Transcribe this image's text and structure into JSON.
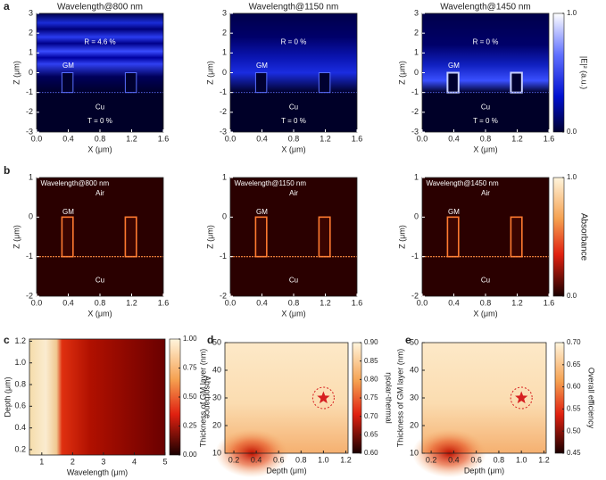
{
  "panel_labels": [
    "a",
    "b",
    "c",
    "d",
    "e"
  ],
  "chart_data": [
    {
      "type": "heatmap",
      "title": "Wavelength@800 nm",
      "xlabel": "X (μm)",
      "ylabel": "Z (μm)",
      "xlim": [
        0,
        1.6
      ],
      "ylim": [
        -3,
        3
      ],
      "xticks": [
        {
          "value": 0,
          "label": "0.0"
        },
        0.4,
        0.8,
        1.2,
        1.6
      ],
      "yticks": [
        -3,
        -2,
        -1,
        0,
        1,
        2,
        3
      ],
      "annotations": [
        "R = 4.6 %",
        "GM",
        "Cu",
        "T = 0 %"
      ]
    },
    {
      "type": "heatmap",
      "title": "Wavelength@1150 nm",
      "xlabel": "X (μm)",
      "ylabel": "Z (μm)",
      "xlim": [
        0,
        1.6
      ],
      "ylim": [
        -3,
        3
      ],
      "xticks": [
        {
          "value": 0,
          "label": "0.0"
        },
        0.4,
        0.8,
        1.2,
        1.6
      ],
      "yticks": [
        -3,
        -2,
        -1,
        0,
        1,
        2,
        3
      ],
      "annotations": [
        "R = 0 %",
        "GM",
        "Cu",
        "T = 0 %"
      ]
    },
    {
      "type": "heatmap",
      "title": "Wavelength@1450 nm",
      "xlabel": "X (μm)",
      "ylabel": "Z (μm)",
      "xlim": [
        0,
        1.6
      ],
      "ylim": [
        -3,
        3
      ],
      "xticks": [
        {
          "value": 0,
          "label": "0.0"
        },
        0.4,
        0.8,
        1.2,
        1.6
      ],
      "yticks": [
        -3,
        -2,
        -1,
        0,
        1,
        2,
        3
      ],
      "annotations": [
        "R = 0 %",
        "GM",
        "Cu",
        "T = 0 %"
      ],
      "colorbar": {
        "label": "|E|² (a.u.)",
        "lim": [
          0,
          1
        ],
        "ticks": [
          {
            "value": 0,
            "label": "0.0"
          },
          {
            "value": 1,
            "label": "1.0"
          }
        ]
      }
    },
    {
      "type": "heatmap",
      "xlabel": "X (μm)",
      "ylabel": "Z (μm)",
      "xlim": [
        0,
        1.6
      ],
      "ylim": [
        -2,
        1
      ],
      "xticks": [
        {
          "value": 0,
          "label": "0.0"
        },
        0.4,
        0.8,
        1.2,
        1.6
      ],
      "yticks": [
        -2,
        -1,
        0,
        1
      ],
      "annotations": [
        "Wavelength@800 nm",
        "Air",
        "GM",
        "Cu"
      ]
    },
    {
      "type": "heatmap",
      "xlabel": "X (μm)",
      "ylabel": "Z (μm)",
      "xlim": [
        0,
        1.6
      ],
      "ylim": [
        -2,
        1
      ],
      "xticks": [
        {
          "value": 0,
          "label": "0.0"
        },
        0.4,
        0.8,
        1.2,
        1.6
      ],
      "yticks": [
        -2,
        -1,
        0,
        1
      ],
      "annotations": [
        "Wavelength@1150 nm",
        "Air",
        "GM",
        "Cu"
      ]
    },
    {
      "type": "heatmap",
      "xlabel": "X (μm)",
      "ylabel": "Z (μm)",
      "xlim": [
        0,
        1.6
      ],
      "ylim": [
        -2,
        1
      ],
      "xticks": [
        {
          "value": 0,
          "label": "0.0"
        },
        0.4,
        0.8,
        1.2,
        1.6
      ],
      "yticks": [
        -2,
        -1,
        0,
        1
      ],
      "annotations": [
        "Wavelength@1450 nm",
        "Air",
        "GM",
        "Cu"
      ],
      "colorbar": {
        "label": "Absorbance",
        "lim": [
          0,
          1
        ],
        "ticks": [
          {
            "value": 0,
            "label": "0.0"
          },
          {
            "value": 1,
            "label": "1.0"
          }
        ]
      }
    },
    {
      "type": "heatmap",
      "xlabel": "Wavelength (μm)",
      "ylabel": "Depth (μm)",
      "xlim": [
        0.6,
        5
      ],
      "ylim": [
        0.15,
        1.22
      ],
      "xticks": [
        1,
        2,
        3,
        4,
        5
      ],
      "yticks": [
        0.2,
        0.4,
        0.6,
        0.8,
        {
          "value": 1,
          "label": "1.0"
        },
        1.2
      ],
      "colorbar": {
        "label": "Absorbance",
        "lim": [
          0,
          1
        ],
        "ticks": [
          {
            "value": 0,
            "label": "0.00"
          },
          0.25,
          {
            "value": 0.5,
            "label": "0.50"
          },
          0.75,
          {
            "value": 1,
            "label": "1.00"
          }
        ]
      }
    },
    {
      "type": "heatmap",
      "xlabel": "Depth (μm)",
      "ylabel": "Thickness of GM layer (nm)",
      "xlim": [
        0.12,
        1.22
      ],
      "ylim": [
        10,
        50
      ],
      "xticks": [
        0.2,
        0.4,
        0.6,
        0.8,
        {
          "value": 1,
          "label": "1.0"
        },
        1.2
      ],
      "yticks": [
        10,
        20,
        30,
        40,
        50
      ],
      "marker": {
        "x": 1.0,
        "y": 30
      },
      "colorbar": {
        "label": "ηsolar-thermal",
        "lim": [
          0.6,
          0.9
        ],
        "ticks": [
          {
            "value": 0.6,
            "label": "0.60"
          },
          0.65,
          {
            "value": 0.7,
            "label": "0.70"
          },
          0.75,
          {
            "value": 0.8,
            "label": "0.80"
          },
          0.85,
          {
            "value": 0.9,
            "label": "0.90"
          }
        ]
      }
    },
    {
      "type": "heatmap",
      "xlabel": "Depth (μm)",
      "ylabel": "Thickness of GM layer (nm)",
      "xlim": [
        0.12,
        1.22
      ],
      "ylim": [
        10,
        50
      ],
      "xticks": [
        0.2,
        0.4,
        0.6,
        0.8,
        {
          "value": 1,
          "label": "1.0"
        },
        1.2
      ],
      "yticks": [
        10,
        20,
        30,
        40,
        50
      ],
      "marker": {
        "x": 1.0,
        "y": 30
      },
      "colorbar": {
        "label": "Overall efficiency",
        "lim": [
          0.45,
          0.7
        ],
        "ticks": [
          {
            "value": 0.45,
            "label": "0.45"
          },
          {
            "value": 0.5,
            "label": "0.50"
          },
          0.55,
          {
            "value": 0.6,
            "label": "0.60"
          },
          0.65,
          {
            "value": 0.7,
            "label": "0.70"
          }
        ]
      }
    }
  ]
}
